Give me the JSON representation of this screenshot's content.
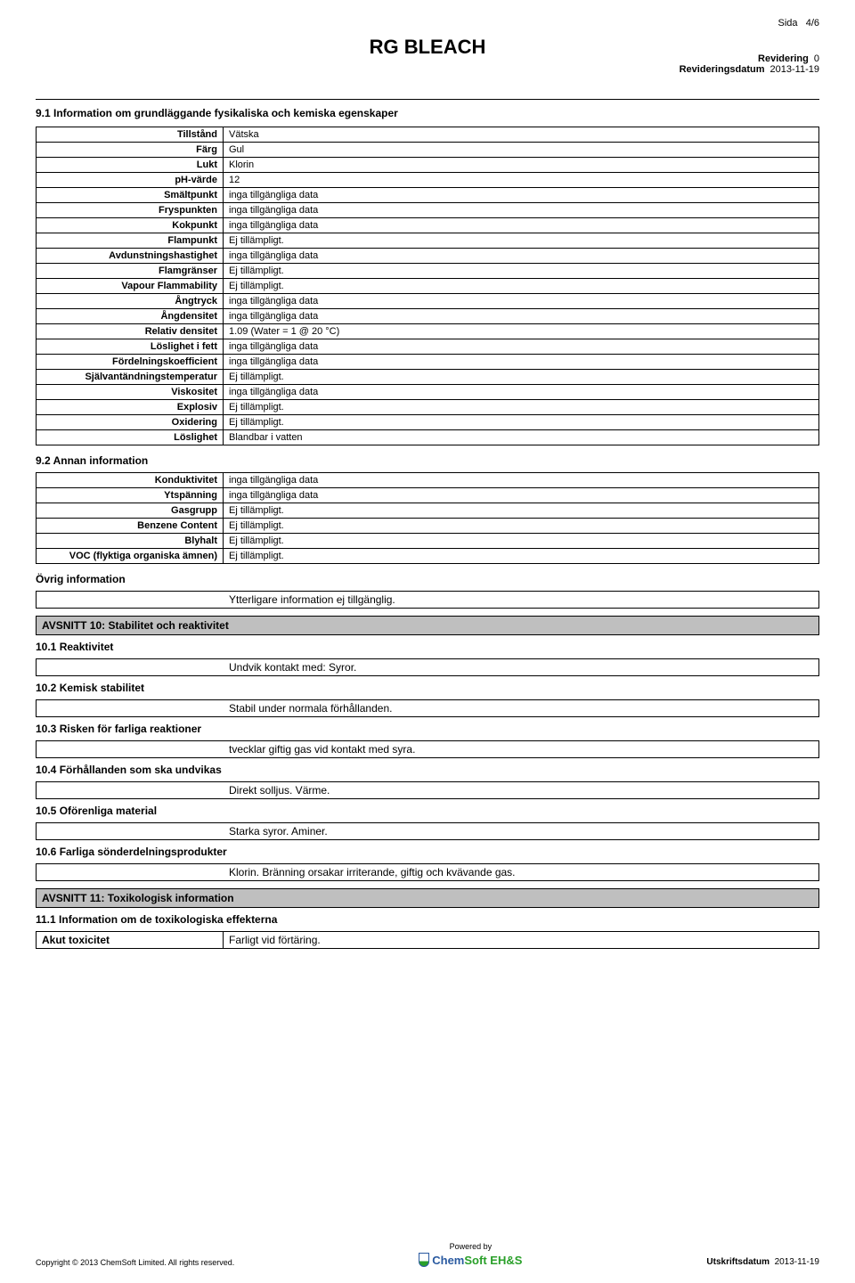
{
  "page": {
    "label": "Sida",
    "num": "4/6"
  },
  "title": "RG BLEACH",
  "revision": {
    "rev_label": "Revidering",
    "rev_value": "0",
    "date_label": "Revideringsdatum",
    "date_value": "2013-11-19"
  },
  "section91_title": "9.1 Information om grundläggande fysikaliska och kemiska egenskaper",
  "props1": [
    {
      "k": "Tillstånd",
      "v": "Vätska"
    },
    {
      "k": "Färg",
      "v": "Gul"
    },
    {
      "k": "Lukt",
      "v": "Klorin"
    },
    {
      "k": "pH-värde",
      "v": "12"
    },
    {
      "k": "Smältpunkt",
      "v": "inga tillgängliga data"
    },
    {
      "k": "Fryspunkten",
      "v": "inga tillgängliga data"
    },
    {
      "k": "Kokpunkt",
      "v": "inga tillgängliga data"
    },
    {
      "k": "Flampunkt",
      "v": "Ej tillämpligt."
    },
    {
      "k": "Avdunstningshastighet",
      "v": "inga tillgängliga data"
    },
    {
      "k": "Flamgränser",
      "v": "Ej tillämpligt."
    },
    {
      "k": "Vapour Flammability",
      "v": "Ej tillämpligt."
    },
    {
      "k": "Ångtryck",
      "v": "inga tillgängliga data"
    },
    {
      "k": "Ångdensitet",
      "v": "inga tillgängliga data"
    },
    {
      "k": "Relativ densitet",
      "v": "1.09 (Water = 1 @ 20 °C)"
    },
    {
      "k": "Löslighet i fett",
      "v": "inga tillgängliga data"
    },
    {
      "k": "Fördelningskoefficient",
      "v": "inga tillgängliga data"
    },
    {
      "k": "Självantändningstemperatur",
      "v": "Ej tillämpligt."
    },
    {
      "k": "Viskositet",
      "v": "inga tillgängliga data"
    },
    {
      "k": "Explosiv",
      "v": "Ej tillämpligt."
    },
    {
      "k": "Oxidering",
      "v": "Ej tillämpligt."
    },
    {
      "k": "Löslighet",
      "v": "Blandbar i vatten"
    }
  ],
  "section92_title": "9.2 Annan information",
  "props2": [
    {
      "k": "Konduktivitet",
      "v": "inga tillgängliga data"
    },
    {
      "k": "Ytspänning",
      "v": "inga tillgängliga data"
    },
    {
      "k": "Gasgrupp",
      "v": "Ej tillämpligt."
    },
    {
      "k": "Benzene Content",
      "v": "Ej tillämpligt."
    },
    {
      "k": "Blyhalt",
      "v": "Ej tillämpligt."
    },
    {
      "k": "VOC (flyktiga organiska ämnen)",
      "v": "Ej tillämpligt."
    }
  ],
  "other_info": {
    "label": "Övrig information",
    "value": "Ytterligare information ej tillgänglig."
  },
  "section10": {
    "bar": "AVSNITT 10: Stabilitet och reaktivitet",
    "r1": {
      "h": "10.1 Reaktivitet",
      "v": "Undvik kontakt med: Syror."
    },
    "r2": {
      "h": "10.2 Kemisk stabilitet",
      "v": "Stabil under normala förhållanden."
    },
    "r3": {
      "h": "10.3 Risken för farliga reaktioner",
      "v": "tvecklar giftig gas vid kontakt med syra."
    },
    "r4": {
      "h": "10.4 Förhållanden som ska undvikas",
      "v": "Direkt solljus. Värme."
    },
    "r5": {
      "h": "10.5 Oförenliga material",
      "v": "Starka syror. Aminer."
    },
    "r6": {
      "h": "10.6 Farliga sönderdelningsprodukter",
      "v": "Klorin. Bränning orsakar irriterande, giftig och kvävande gas."
    }
  },
  "section11": {
    "bar": "AVSNITT 11: Toxikologisk information",
    "r1": "11.1 Information om de toxikologiska effekterna",
    "akut_k": "Akut toxicitet",
    "akut_v": "Farligt vid förtäring."
  },
  "footer": {
    "copyright": "Copyright © 2013 ChemSoft Limited.  All rights reserved.",
    "powered": "Powered by",
    "logo1": "Chem",
    "logo2": "Soft",
    "logo3": "EH&S",
    "print_label": "Utskriftsdatum",
    "print_value": "2013-11-19"
  }
}
